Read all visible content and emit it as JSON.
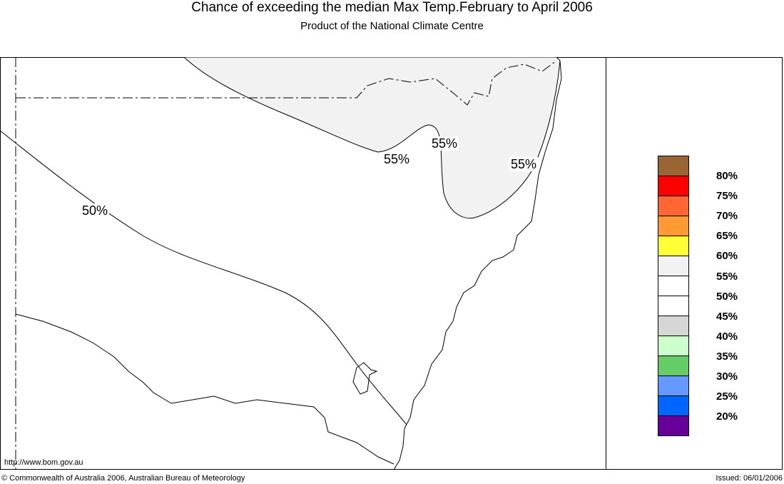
{
  "title": "Chance of exceeding the median Max Temp.February to April 2006",
  "subtitle": "Product of the National Climate Centre",
  "map_labels": [
    "55%",
    "55%",
    "55%",
    "50%"
  ],
  "url": "http://www.bom.gov.au",
  "copyright": "© Commonwealth of Australia 2006, Australian Bureau of Meteorology",
  "issued": "Issued: 06/01/2006",
  "legend": {
    "colors": [
      "#996633",
      "#ff0000",
      "#ff6633",
      "#ff9933",
      "#ffff33",
      "#f2f2f2",
      "#ffffff",
      "#ffffff",
      "#d6d6d6",
      "#ccffcc",
      "#66cc66",
      "#6699ff",
      "#0066ff",
      "#660099"
    ],
    "labels": [
      "80%",
      "75%",
      "70%",
      "65%",
      "60%",
      "55%",
      "50%",
      "45%",
      "40%",
      "35%",
      "30%",
      "25%",
      "20%"
    ]
  }
}
